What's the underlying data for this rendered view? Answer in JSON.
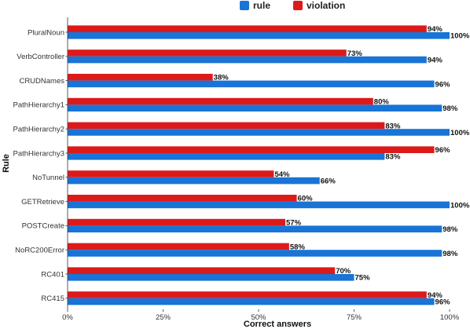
{
  "chart_data": {
    "type": "bar",
    "orientation": "horizontal",
    "categories": [
      "PluralNoun",
      "VerbController",
      "CRUDNames",
      "PathHierarchy1",
      "PathHierarchy2",
      "PathHierarchy3",
      "NoTunnel",
      "GETRetrieve",
      "POSTCreate",
      "NoRC200Error",
      "RC401",
      "RC415"
    ],
    "series": [
      {
        "name": "rule",
        "color": "#1874d6",
        "values": [
          100,
          94,
          96,
          98,
          100,
          83,
          66,
          100,
          98,
          98,
          75,
          96
        ]
      },
      {
        "name": "violation",
        "color": "#dd1a1a",
        "values": [
          94,
          73,
          38,
          80,
          83,
          96,
          54,
          60,
          57,
          58,
          70,
          94
        ]
      }
    ],
    "xlabel": "Correct answers",
    "ylabel": "Rule",
    "xlim": [
      0,
      100
    ],
    "xticks": [
      0,
      25,
      50,
      75,
      100
    ],
    "xtick_labels": [
      "0%",
      "25%",
      "50%",
      "75%",
      "100%"
    ],
    "value_suffix": "%",
    "legend_position": "top",
    "grid": false
  }
}
